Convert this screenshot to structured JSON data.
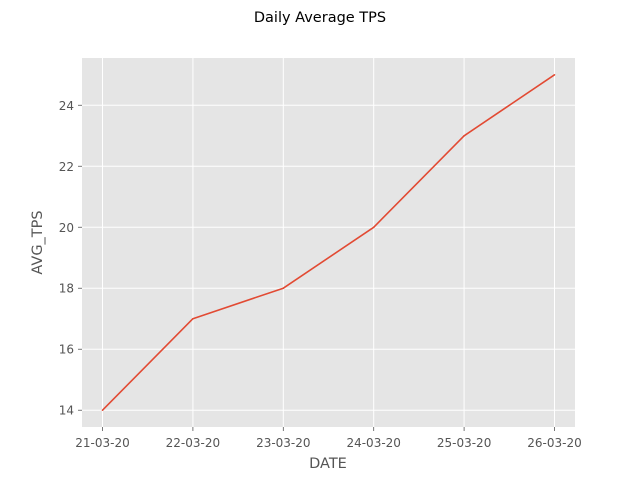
{
  "chart_data": {
    "type": "line",
    "title": "Daily Average TPS",
    "xlabel": "DATE",
    "ylabel": "AVG_TPS",
    "categories": [
      "21-03-20",
      "22-03-20",
      "23-03-20",
      "24-03-20",
      "25-03-20",
      "26-03-20"
    ],
    "series": [
      {
        "values": [
          14,
          17,
          18,
          20,
          23,
          25
        ],
        "color": "#E24A33"
      }
    ],
    "yticks": [
      14,
      16,
      18,
      20,
      22,
      24
    ],
    "ylim": [
      13.45,
      25.55
    ],
    "grid": true,
    "background_color": "#E5E5E5",
    "grid_color": "#FFFFFF"
  }
}
